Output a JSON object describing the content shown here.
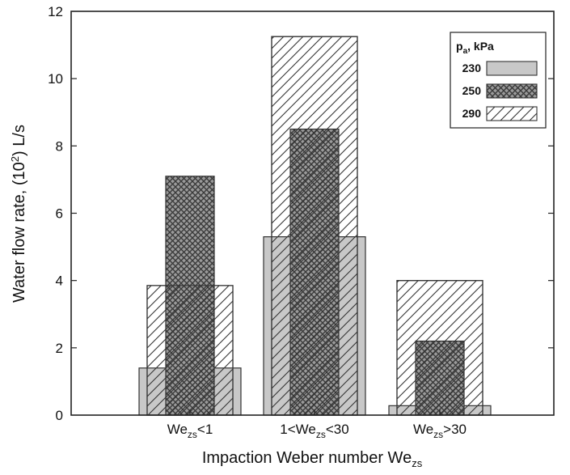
{
  "chart_data": {
    "type": "bar",
    "title": "",
    "xlabel": {
      "main": "Impaction Weber number  We",
      "sub": "zs"
    },
    "ylabel": {
      "before": "Water flow rate, (10",
      "sup": "2",
      "after": ") L/s"
    },
    "ylim": [
      0,
      12
    ],
    "yticks": [
      "0",
      "2",
      "4",
      "6",
      "8",
      "10",
      "12"
    ],
    "categories": [
      {
        "pre": "We",
        "sub": "zs",
        "post": "<1"
      },
      {
        "pre": "1<We",
        "sub": "zs",
        "post": "<30"
      },
      {
        "pre": "We",
        "sub": "zs",
        "post": ">30"
      }
    ],
    "legend": {
      "title_main": "p",
      "title_sub": "a",
      "title_rest": ", kPa",
      "placement": "top-right"
    },
    "series": [
      {
        "name": "230",
        "pattern": "solid-gray",
        "values": [
          1.4,
          5.3,
          0.28
        ]
      },
      {
        "name": "250",
        "pattern": "crosshatch",
        "values": [
          7.1,
          8.5,
          2.2
        ]
      },
      {
        "name": "290",
        "pattern": "diagonal-hatch",
        "values": [
          3.85,
          11.25,
          4.0
        ]
      }
    ],
    "colors": {
      "gray_fill": "#c8c8c8",
      "hatch": "#333333",
      "frame": "#222222"
    }
  }
}
